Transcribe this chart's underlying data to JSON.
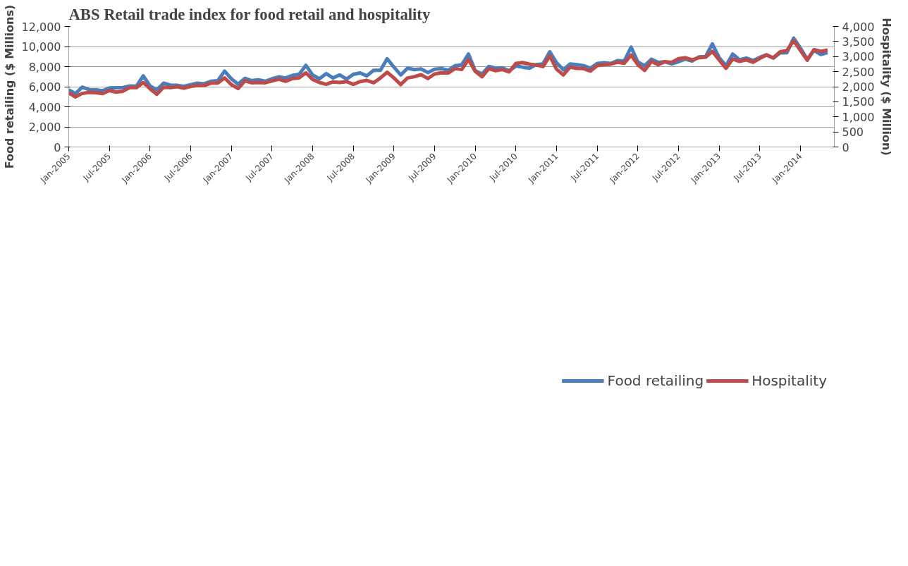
{
  "chart_data": {
    "type": "line",
    "title": "ABS Retail trade index for food retail and hospitality",
    "ylabel": "Food retailing ($ Millions)",
    "y2label": "Hospitality ($ Million)",
    "x": [
      "2005-01",
      "2005-02",
      "2005-03",
      "2005-04",
      "2005-05",
      "2005-06",
      "2005-07",
      "2005-08",
      "2005-09",
      "2005-10",
      "2005-11",
      "2005-12",
      "2006-01",
      "2006-02",
      "2006-03",
      "2006-04",
      "2006-05",
      "2006-06",
      "2006-07",
      "2006-08",
      "2006-09",
      "2006-10",
      "2006-11",
      "2006-12",
      "2007-01",
      "2007-02",
      "2007-03",
      "2007-04",
      "2007-05",
      "2007-06",
      "2007-07",
      "2007-08",
      "2007-09",
      "2007-10",
      "2007-11",
      "2007-12",
      "2008-01",
      "2008-02",
      "2008-03",
      "2008-04",
      "2008-05",
      "2008-06",
      "2008-07",
      "2008-08",
      "2008-09",
      "2008-10",
      "2008-11",
      "2008-12",
      "2009-01",
      "2009-02",
      "2009-03",
      "2009-04",
      "2009-05",
      "2009-06",
      "2009-07",
      "2009-08",
      "2009-09",
      "2009-10",
      "2009-11",
      "2009-12",
      "2010-01",
      "2010-02",
      "2010-03",
      "2010-04",
      "2010-05",
      "2010-06",
      "2010-07",
      "2010-08",
      "2010-09",
      "2010-10",
      "2010-11",
      "2010-12",
      "2011-01",
      "2011-02",
      "2011-03",
      "2011-04",
      "2011-05",
      "2011-06",
      "2011-07",
      "2011-08",
      "2011-09",
      "2011-10",
      "2011-11",
      "2011-12",
      "2012-01",
      "2012-02",
      "2012-03",
      "2012-04",
      "2012-05",
      "2012-06",
      "2012-07",
      "2012-08",
      "2012-09",
      "2012-10",
      "2012-11",
      "2012-12",
      "2013-01",
      "2013-02",
      "2013-03",
      "2013-04",
      "2013-05",
      "2013-06",
      "2013-07",
      "2013-08",
      "2013-09",
      "2013-10",
      "2013-11",
      "2013-12",
      "2014-01",
      "2014-02",
      "2014-03",
      "2014-04",
      "2014-05"
    ],
    "series": [
      {
        "name": "Food retailing",
        "color": "#4a7ebb",
        "values": [
          5690,
          5310,
          5960,
          5710,
          5680,
          5590,
          5870,
          5890,
          5910,
          6070,
          6060,
          7080,
          6070,
          5680,
          6350,
          6160,
          6140,
          6040,
          6200,
          6360,
          6290,
          6540,
          6600,
          7550,
          6790,
          6250,
          6830,
          6610,
          6690,
          6540,
          6790,
          6980,
          6870,
          7120,
          7230,
          8130,
          7160,
          6790,
          7300,
          6870,
          7170,
          6760,
          7230,
          7370,
          7080,
          7630,
          7630,
          8780,
          7950,
          7160,
          7840,
          7700,
          7770,
          7410,
          7730,
          7810,
          7630,
          8090,
          8170,
          9250,
          7590,
          7260,
          8020,
          7840,
          7880,
          7590,
          8060,
          7950,
          7840,
          8200,
          8270,
          9470,
          8380,
          7680,
          8270,
          8200,
          8090,
          7840,
          8310,
          8380,
          8310,
          8600,
          8560,
          9940,
          8460,
          8090,
          8740,
          8420,
          8490,
          8270,
          8490,
          8740,
          8560,
          8960,
          9000,
          10260,
          8890,
          8090,
          9250,
          8670,
          8850,
          8600,
          8920,
          9180,
          8850,
          9360,
          9390,
          10840,
          9830,
          8740,
          9610,
          9210,
          9390
        ]
      },
      {
        "name": "Hospitality",
        "color": "#be4b48",
        "axis": "y2",
        "values": [
          1800,
          1660,
          1780,
          1810,
          1800,
          1770,
          1870,
          1820,
          1850,
          1970,
          1970,
          2140,
          1930,
          1750,
          1980,
          1970,
          2000,
          1950,
          2010,
          2040,
          2040,
          2120,
          2120,
          2290,
          2070,
          1940,
          2190,
          2130,
          2140,
          2130,
          2190,
          2250,
          2180,
          2270,
          2290,
          2460,
          2240,
          2140,
          2080,
          2160,
          2140,
          2170,
          2080,
          2170,
          2210,
          2130,
          2290,
          2480,
          2290,
          2070,
          2290,
          2330,
          2400,
          2270,
          2420,
          2460,
          2450,
          2600,
          2570,
          2900,
          2510,
          2330,
          2600,
          2530,
          2570,
          2490,
          2770,
          2800,
          2750,
          2720,
          2670,
          3020,
          2580,
          2390,
          2650,
          2610,
          2600,
          2520,
          2700,
          2730,
          2750,
          2810,
          2780,
          3050,
          2730,
          2540,
          2840,
          2730,
          2830,
          2810,
          2930,
          2960,
          2890,
          2960,
          2980,
          3170,
          2890,
          2610,
          2920,
          2840,
          2890,
          2810,
          2940,
          3050,
          2960,
          3160,
          3200,
          3530,
          3200,
          2880,
          3230,
          3170,
          3220
        ]
      }
    ],
    "xlim": [
      "2005-01",
      "2014-06"
    ],
    "xticks": [
      {
        "value": "2005-01",
        "label": "Jan-2005"
      },
      {
        "value": "2005-07",
        "label": "Jul-2005"
      },
      {
        "value": "2006-01",
        "label": "Jan-2006"
      },
      {
        "value": "2006-07",
        "label": "Jul-2006"
      },
      {
        "value": "2007-01",
        "label": "Jan-2007"
      },
      {
        "value": "2007-07",
        "label": "Jul-2007"
      },
      {
        "value": "2008-01",
        "label": "Jan-2008"
      },
      {
        "value": "2008-07",
        "label": "Jul-2008"
      },
      {
        "value": "2009-01",
        "label": "Jan-2009"
      },
      {
        "value": "2009-07",
        "label": "Jul-2009"
      },
      {
        "value": "2010-01",
        "label": "Jan-2010"
      },
      {
        "value": "2010-07",
        "label": "Jul-2010"
      },
      {
        "value": "2011-01",
        "label": "Jan-2011"
      },
      {
        "value": "2011-07",
        "label": "Jul-2011"
      },
      {
        "value": "2012-01",
        "label": "Jan-2012"
      },
      {
        "value": "2012-07",
        "label": "Jul-2012"
      },
      {
        "value": "2013-01",
        "label": "Jan-2013"
      },
      {
        "value": "2013-07",
        "label": "Jul-2013"
      },
      {
        "value": "2014-01",
        "label": "Jan-2014"
      }
    ],
    "ylim": [
      0,
      12000
    ],
    "yticks": [
      0,
      {
        "value": 2000,
        "label": "2,000"
      },
      {
        "value": 4000,
        "label": "4,000"
      },
      {
        "value": 6000,
        "label": "6,000"
      },
      {
        "value": 8000,
        "label": "8,000"
      },
      {
        "value": 10000,
        "label": "10,000"
      },
      {
        "value": 12000,
        "label": "12,000"
      }
    ],
    "y2lim": [
      0,
      4000
    ],
    "y2ticks": [
      0,
      500,
      {
        "value": 1000,
        "label": "1,000"
      },
      {
        "value": 1500,
        "label": "1,500"
      },
      {
        "value": 2000,
        "label": "2,000"
      },
      {
        "value": 2500,
        "label": "2,500"
      },
      {
        "value": 3000,
        "label": "3,000"
      },
      {
        "value": 3500,
        "label": "3,500"
      },
      {
        "value": 4000,
        "label": "4,000"
      }
    ],
    "grid": "y",
    "legend": "bottom",
    "marker": "none",
    "line_style": "solid"
  }
}
